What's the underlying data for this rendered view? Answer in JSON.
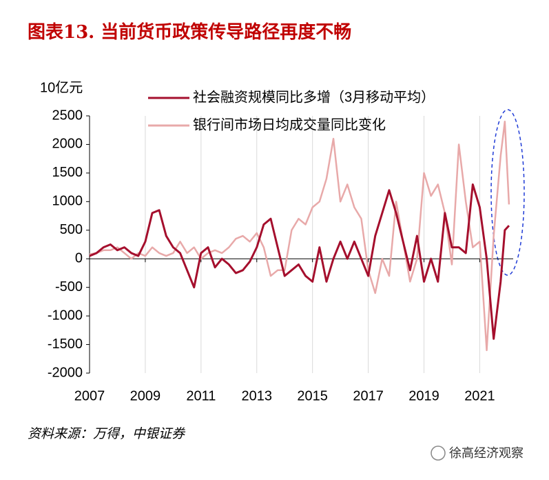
{
  "chart_data": {
    "type": "line",
    "title": "图表13.  当前货币政策传导路径再度不畅",
    "y_unit": "10亿元",
    "source": "资料来源：万得，中银证券",
    "watermark": "徐高经济观察",
    "x": [
      2007,
      2007.25,
      2007.5,
      2007.75,
      2008,
      2008.25,
      2008.5,
      2008.75,
      2009,
      2009.25,
      2009.5,
      2009.75,
      2010,
      2010.25,
      2010.5,
      2010.75,
      2011,
      2011.25,
      2011.5,
      2011.75,
      2012,
      2012.25,
      2012.5,
      2012.75,
      2013,
      2013.25,
      2013.5,
      2013.75,
      2014,
      2014.25,
      2014.5,
      2014.75,
      2015,
      2015.25,
      2015.5,
      2015.75,
      2016,
      2016.25,
      2016.5,
      2016.75,
      2017,
      2017.25,
      2017.5,
      2017.75,
      2018,
      2018.25,
      2018.5,
      2018.75,
      2019,
      2019.25,
      2019.5,
      2019.75,
      2020,
      2020.25,
      2020.5,
      2020.75,
      2021,
      2021.25,
      2021.5,
      2021.75,
      2021.9,
      2022.05
    ],
    "series": [
      {
        "name": "社会融资规模同比多增（3月移动平均）",
        "color": "#a50f2d",
        "values": [
          50,
          100,
          200,
          250,
          150,
          200,
          100,
          50,
          300,
          800,
          850,
          400,
          200,
          100,
          -200,
          -500,
          100,
          200,
          -150,
          0,
          -100,
          -250,
          -200,
          -50,
          200,
          600,
          700,
          200,
          -300,
          -200,
          -100,
          -300,
          -400,
          200,
          -400,
          0,
          300,
          0,
          300,
          0,
          -300,
          400,
          800,
          1200,
          800,
          300,
          -200,
          400,
          -400,
          0,
          -400,
          800,
          200,
          200,
          100,
          1300,
          900,
          0,
          -1400,
          -400,
          500,
          580
        ]
      },
      {
        "name": "银行间市场日均成交量同比变化",
        "color": "#e8a9a9",
        "values": [
          80,
          100,
          150,
          150,
          200,
          100,
          0,
          100,
          50,
          200,
          100,
          50,
          100,
          300,
          100,
          200,
          0,
          100,
          150,
          100,
          200,
          350,
          400,
          300,
          450,
          200,
          -300,
          -200,
          -200,
          500,
          700,
          600,
          900,
          1000,
          1400,
          2100,
          1000,
          1300,
          900,
          700,
          -200,
          -600,
          0,
          -300,
          1000,
          300,
          -400,
          0,
          1500,
          1100,
          1300,
          800,
          -100,
          2000,
          1000,
          200,
          300,
          -1600,
          400,
          1800,
          2400,
          950
        ]
      }
    ],
    "xlim": [
      2007,
      2022.2
    ],
    "xticks": [
      2007,
      2009,
      2011,
      2013,
      2015,
      2017,
      2019,
      2021
    ],
    "ylim": [
      -2000,
      2500
    ],
    "yticks": [
      -2000,
      -1500,
      -1000,
      -500,
      0,
      500,
      1000,
      1500,
      2000,
      2500
    ],
    "grid": true
  }
}
